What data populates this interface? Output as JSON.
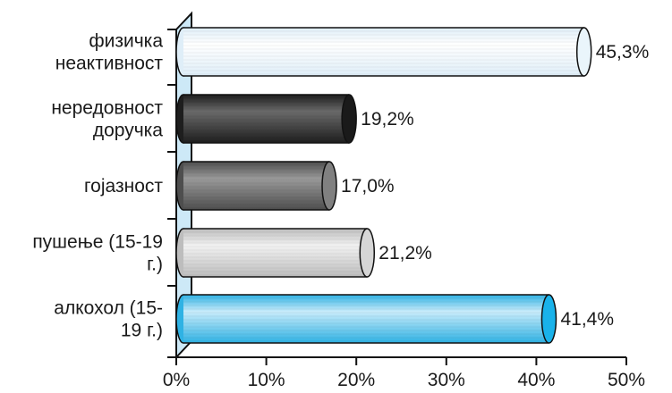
{
  "chart_data": {
    "type": "bar",
    "orientation": "horizontal",
    "style": "3d-cylinder",
    "categories": [
      [
        "физичка",
        "неактивност"
      ],
      [
        "нередовност",
        "доручка"
      ],
      [
        "гојазност"
      ],
      [
        "пушење (15-19",
        "г.)"
      ],
      [
        "алкохол (15-",
        "19 г.)"
      ]
    ],
    "values": [
      45.3,
      19.2,
      17.0,
      21.2,
      41.4
    ],
    "value_labels": [
      "45,3%",
      "19,2%",
      "17,0%",
      "21,2%",
      "41,4%"
    ],
    "xlim": [
      0,
      50
    ],
    "xticks": [
      0,
      10,
      20,
      30,
      40,
      50
    ],
    "xtick_labels": [
      "0%",
      "10%",
      "20%",
      "30%",
      "40%",
      "50%"
    ],
    "grid": false,
    "legend": "none",
    "bar_colors": [
      {
        "body_light": "#ffffff",
        "body_dark": "#dfeef8",
        "end_cap": "#eaf5fb"
      },
      {
        "body_light": "#6a6a6a",
        "body_dark": "#1e1e1e",
        "end_cap": "#1a1a1a"
      },
      {
        "body_light": "#9a9a9a",
        "body_dark": "#4e4e4e",
        "end_cap": "#808080"
      },
      {
        "body_light": "#f2f2f2",
        "body_dark": "#bdbdbd",
        "end_cap": "#d6d6d6"
      },
      {
        "body_light": "#c9ecfb",
        "body_dark": "#2fb2e4",
        "end_cap": "#19b2ea"
      }
    ],
    "wall_color": "#cde9f7"
  }
}
